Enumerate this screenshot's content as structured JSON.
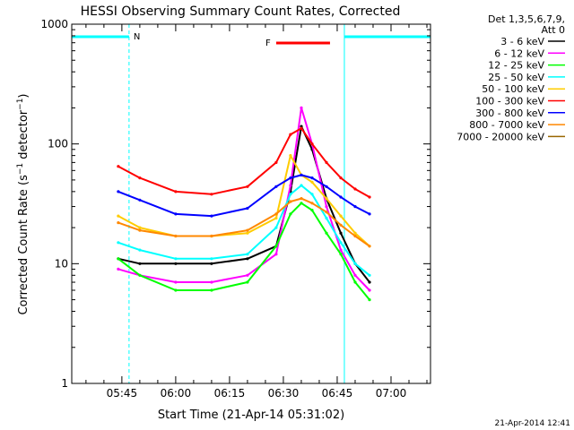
{
  "footer_stamp": "21-Apr-2014 12:41",
  "chart_data": {
    "type": "line",
    "title": "HESSI Observing Summary Count Rates, Corrected",
    "xlabel": "Start Time (21-Apr-14 05:31:02)",
    "ylabel": "Corrected Count Rate (s^-1 detector^-1)",
    "y_scale": "log",
    "ylim": [
      1,
      1000
    ],
    "xlim": [
      "05:31:02",
      "07:11"
    ],
    "x_ticks": [
      "05:45",
      "06:00",
      "06:15",
      "06:30",
      "06:45",
      "07:00"
    ],
    "y_ticks": [
      "1",
      "10",
      "100",
      "1000"
    ],
    "grid": false,
    "legend_header": [
      "Det 1,3,5,6,7,9,",
      "Att 0"
    ],
    "legend_position": "right",
    "series": [
      {
        "name": "3 - 6 keV",
        "color": "#000000",
        "x": [
          "05:44",
          "05:50",
          "06:00",
          "06:10",
          "06:20",
          "06:28",
          "06:32",
          "06:35",
          "06:38",
          "06:42",
          "06:46",
          "06:50",
          "06:54"
        ],
        "y": [
          11,
          10,
          10,
          10,
          11,
          14,
          40,
          140,
          90,
          35,
          18,
          10,
          7
        ]
      },
      {
        "name": "6 - 12 keV",
        "color": "#ff00ff",
        "x": [
          "05:44",
          "05:50",
          "06:00",
          "06:10",
          "06:20",
          "06:28",
          "06:32",
          "06:35",
          "06:38",
          "06:42",
          "06:46",
          "06:50",
          "06:54"
        ],
        "y": [
          9,
          8,
          7,
          7,
          8,
          12,
          45,
          200,
          100,
          30,
          13,
          8,
          6
        ]
      },
      {
        "name": "12 - 25 keV",
        "color": "#00ff00",
        "x": [
          "05:44",
          "05:50",
          "06:00",
          "06:10",
          "06:20",
          "06:28",
          "06:32",
          "06:35",
          "06:38",
          "06:42",
          "06:46",
          "06:50",
          "06:54"
        ],
        "y": [
          11,
          8,
          6,
          6,
          7,
          14,
          26,
          32,
          28,
          18,
          12,
          7,
          5
        ]
      },
      {
        "name": "25 - 50 keV",
        "color": "#00ffff",
        "x": [
          "05:44",
          "05:50",
          "06:00",
          "06:10",
          "06:20",
          "06:28",
          "06:32",
          "06:35",
          "06:38",
          "06:42",
          "06:46",
          "06:50",
          "06:54"
        ],
        "y": [
          15,
          13,
          11,
          11,
          12,
          20,
          38,
          45,
          38,
          24,
          15,
          10,
          8
        ]
      },
      {
        "name": "50 - 100 keV",
        "color": "#ffcc00",
        "x": [
          "05:44",
          "05:50",
          "06:00",
          "06:10",
          "06:20",
          "06:28",
          "06:32",
          "06:35",
          "06:38",
          "06:42",
          "06:46",
          "06:50",
          "06:54"
        ],
        "y": [
          25,
          20,
          17,
          17,
          18,
          24,
          80,
          55,
          48,
          35,
          25,
          18,
          14
        ]
      },
      {
        "name": "100 - 300 keV",
        "color": "#ff0000",
        "x": [
          "05:44",
          "05:50",
          "06:00",
          "06:10",
          "06:20",
          "06:28",
          "06:32",
          "06:35",
          "06:38",
          "06:42",
          "06:46",
          "06:50",
          "06:54"
        ],
        "y": [
          65,
          52,
          40,
          38,
          44,
          70,
          120,
          135,
          100,
          70,
          52,
          42,
          36
        ]
      },
      {
        "name": "300 - 800 keV",
        "color": "#0000ff",
        "x": [
          "05:44",
          "05:50",
          "06:00",
          "06:10",
          "06:20",
          "06:28",
          "06:32",
          "06:35",
          "06:38",
          "06:42",
          "06:46",
          "06:50",
          "06:54"
        ],
        "y": [
          40,
          34,
          26,
          25,
          29,
          44,
          52,
          55,
          52,
          44,
          36,
          30,
          26
        ]
      },
      {
        "name": "800 - 7000 keV",
        "color": "#ff8800",
        "x": [
          "05:44",
          "05:50",
          "06:00",
          "06:10",
          "06:20",
          "06:28",
          "06:32",
          "06:35",
          "06:38",
          "06:42",
          "06:46",
          "06:50",
          "06:54"
        ],
        "y": [
          22,
          19,
          17,
          17,
          19,
          26,
          33,
          35,
          32,
          27,
          21,
          17,
          14
        ]
      },
      {
        "name": "7000 - 20000 keV",
        "color": "#996600",
        "x": [],
        "y": []
      }
    ],
    "annotations": [
      {
        "label": "N",
        "color": "#00ffff",
        "type": "night",
        "intervals": [
          [
            "05:31:02",
            "05:47"
          ],
          [
            "06:47",
            "07:11"
          ]
        ]
      },
      {
        "label": "F",
        "color": "#ff0000",
        "type": "flare",
        "interval": [
          "06:28",
          "06:43"
        ]
      }
    ]
  }
}
